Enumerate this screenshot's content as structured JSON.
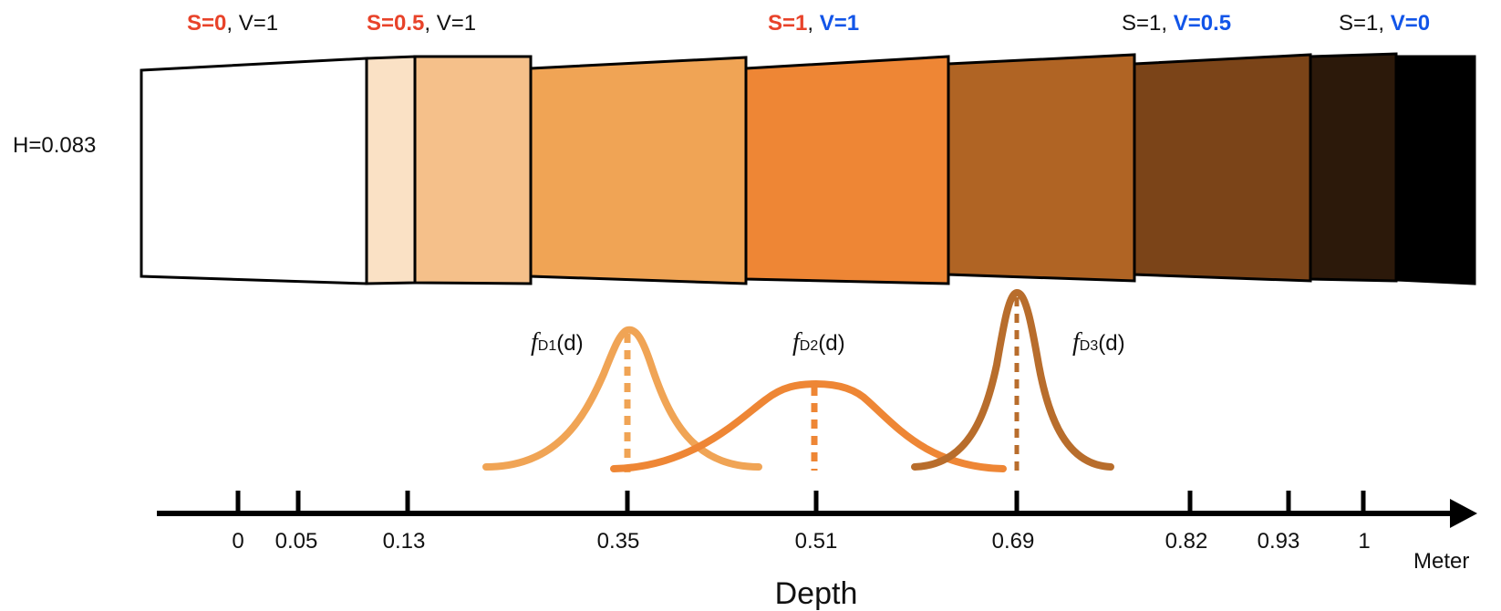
{
  "hue_label": "H=0.083",
  "tone_labels": [
    {
      "parts": [
        {
          "text": "S=0",
          "style": "red"
        },
        {
          "text": ", V=1",
          "style": "plain"
        }
      ]
    },
    {
      "parts": [
        {
          "text": "S=0.5",
          "style": "red"
        },
        {
          "text": ", V=1",
          "style": "plain"
        }
      ]
    },
    {
      "parts": [
        {
          "text": "S=1",
          "style": "red"
        },
        {
          "text": ", ",
          "style": "plain"
        },
        {
          "text": "V=1",
          "style": "blue"
        }
      ]
    },
    {
      "parts": [
        {
          "text": "S=1, ",
          "style": "plain"
        },
        {
          "text": "V=0.5",
          "style": "blue"
        }
      ]
    },
    {
      "parts": [
        {
          "text": "S=1, ",
          "style": "plain"
        },
        {
          "text": "V=0",
          "style": "blue"
        }
      ]
    }
  ],
  "color_blocks": [
    "#ffffff",
    "#fae1c5",
    "#f5c08a",
    "#f0a455",
    "#ee8635",
    "#b06424",
    "#7b4418",
    "#2c190a",
    "#000000"
  ],
  "curves": [
    {
      "name": "fD1(d)",
      "prefix": "f",
      "sub": "D1",
      "arg": "(d)",
      "color": "#f0a455"
    },
    {
      "name": "fD2(d)",
      "prefix": "f",
      "sub": "D2",
      "arg": "(d)",
      "color": "#ee8635"
    },
    {
      "name": "fD3(d)",
      "prefix": "f",
      "sub": "D3",
      "arg": "(d)",
      "color": "#b86d2c"
    }
  ],
  "axis": {
    "ticks": [
      "0",
      "0.05",
      "0.13",
      "0.35",
      "0.51",
      "0.69",
      "0.82",
      "0.93",
      "1"
    ],
    "unit": "Meter",
    "title": "Depth"
  },
  "colors": {
    "red": "#e8432a",
    "blue": "#1255e8",
    "axis": "#000000"
  }
}
